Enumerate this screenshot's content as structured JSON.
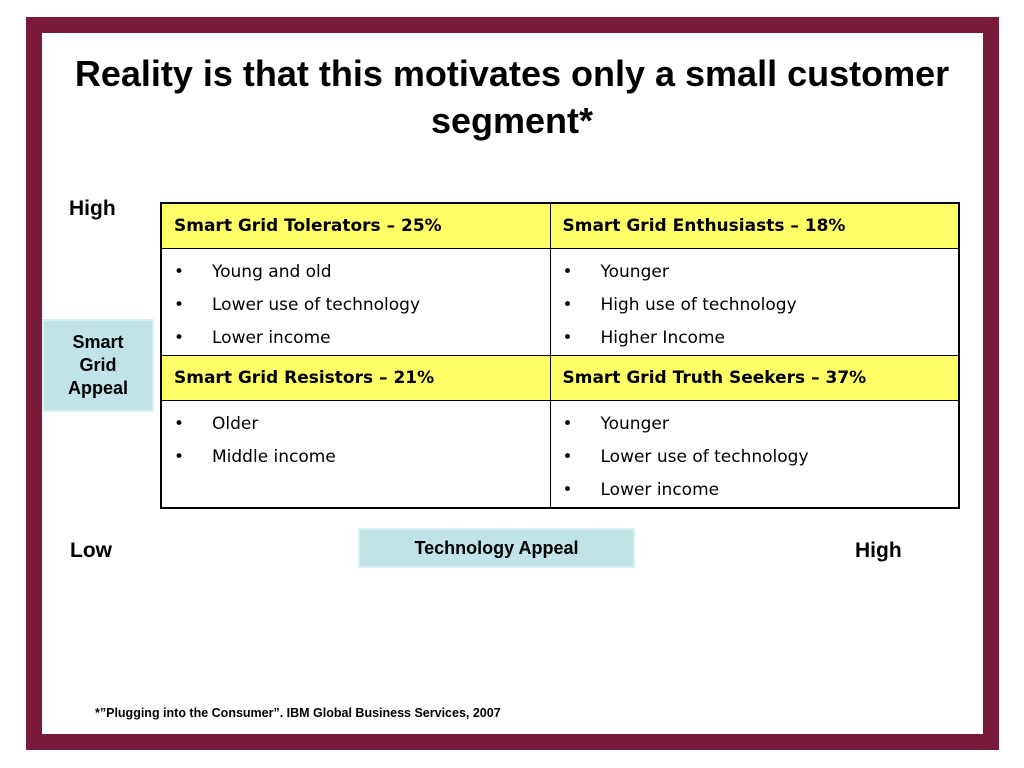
{
  "title": "Reality is that this motivates only a small customer segment*",
  "axis": {
    "y_high": "High",
    "x_low": "Low",
    "x_high": "High",
    "y_label_lines": [
      "Smart",
      "Grid",
      "Appeal"
    ],
    "x_label": "Technology Appeal"
  },
  "quadrants": [
    {
      "header": "Smart Grid Tolerators – 25%",
      "items": [
        "Young and old",
        "Lower use of technology",
        "Lower income"
      ]
    },
    {
      "header": "Smart Grid Enthusiasts – 18%",
      "items": [
        "Younger",
        "High use of technology",
        "Higher Income"
      ]
    },
    {
      "header": "Smart Grid Resistors – 21%",
      "items": [
        "Older",
        "Middle income"
      ]
    },
    {
      "header": "Smart Grid Truth Seekers – 37%",
      "items": [
        "Younger",
        "Lower use of technology",
        "Lower income"
      ]
    }
  ],
  "bullet": "•",
  "footnote": "*”Plugging into the Consumer”.  IBM Global Business Services, 2007",
  "colors": {
    "frame": "#7a1a3a",
    "header_fill": "#ffff66",
    "appeal_fill": "#bfe3e6"
  }
}
